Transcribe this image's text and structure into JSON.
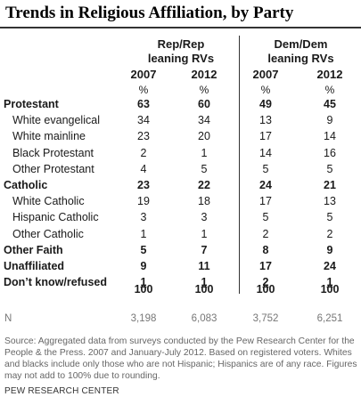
{
  "title": "Trends in Religious Affiliation, by Party",
  "groups": {
    "rep": [
      "Rep/Rep",
      "leaning RVs"
    ],
    "dem": [
      "Dem/Dem",
      "leaning RVs"
    ]
  },
  "years": [
    "2007",
    "2012",
    "2007",
    "2012"
  ],
  "pct_sign": "%",
  "rows": [
    {
      "label": "Protestant",
      "main": true,
      "values": [
        "63",
        "60",
        "49",
        "45"
      ]
    },
    {
      "label": "White evangelical",
      "main": false,
      "values": [
        "34",
        "34",
        "13",
        "9"
      ]
    },
    {
      "label": "White mainline",
      "main": false,
      "values": [
        "23",
        "20",
        "17",
        "14"
      ]
    },
    {
      "label": "Black Protestant",
      "main": false,
      "values": [
        "2",
        "1",
        "14",
        "16"
      ]
    },
    {
      "label": "Other Protestant",
      "main": false,
      "values": [
        "4",
        "5",
        "5",
        "5"
      ]
    },
    {
      "label": "Catholic",
      "main": true,
      "values": [
        "23",
        "22",
        "24",
        "21"
      ]
    },
    {
      "label": "White Catholic",
      "main": false,
      "values": [
        "19",
        "18",
        "17",
        "13"
      ]
    },
    {
      "label": "Hispanic Catholic",
      "main": false,
      "values": [
        "3",
        "3",
        "5",
        "5"
      ]
    },
    {
      "label": "Other Catholic",
      "main": false,
      "values": [
        "1",
        "1",
        "2",
        "2"
      ]
    },
    {
      "label": "Other Faith",
      "main": true,
      "values": [
        "5",
        "7",
        "8",
        "9"
      ]
    },
    {
      "label": "Unaffiliated",
      "main": true,
      "values": [
        "9",
        "11",
        "17",
        "24"
      ]
    },
    {
      "label": "Don’t know/refused",
      "main": true,
      "values": [
        "1",
        "1",
        "2",
        "1"
      ]
    }
  ],
  "totals": [
    "100",
    "100",
    "100",
    "100"
  ],
  "n_label": "N",
  "n_values": [
    "3,198",
    "6,083",
    "3,752",
    "6,251"
  ],
  "source": "Source: Aggregated data from surveys conducted by the Pew Research Center for the People & the Press. 2007 and January-July 2012. Based on registered voters. Whites and blacks include only those who are not Hispanic; Hispanics are of any race. Figures may not add to 100% due to rounding.",
  "footer": "PEW RESEARCH CENTER"
}
